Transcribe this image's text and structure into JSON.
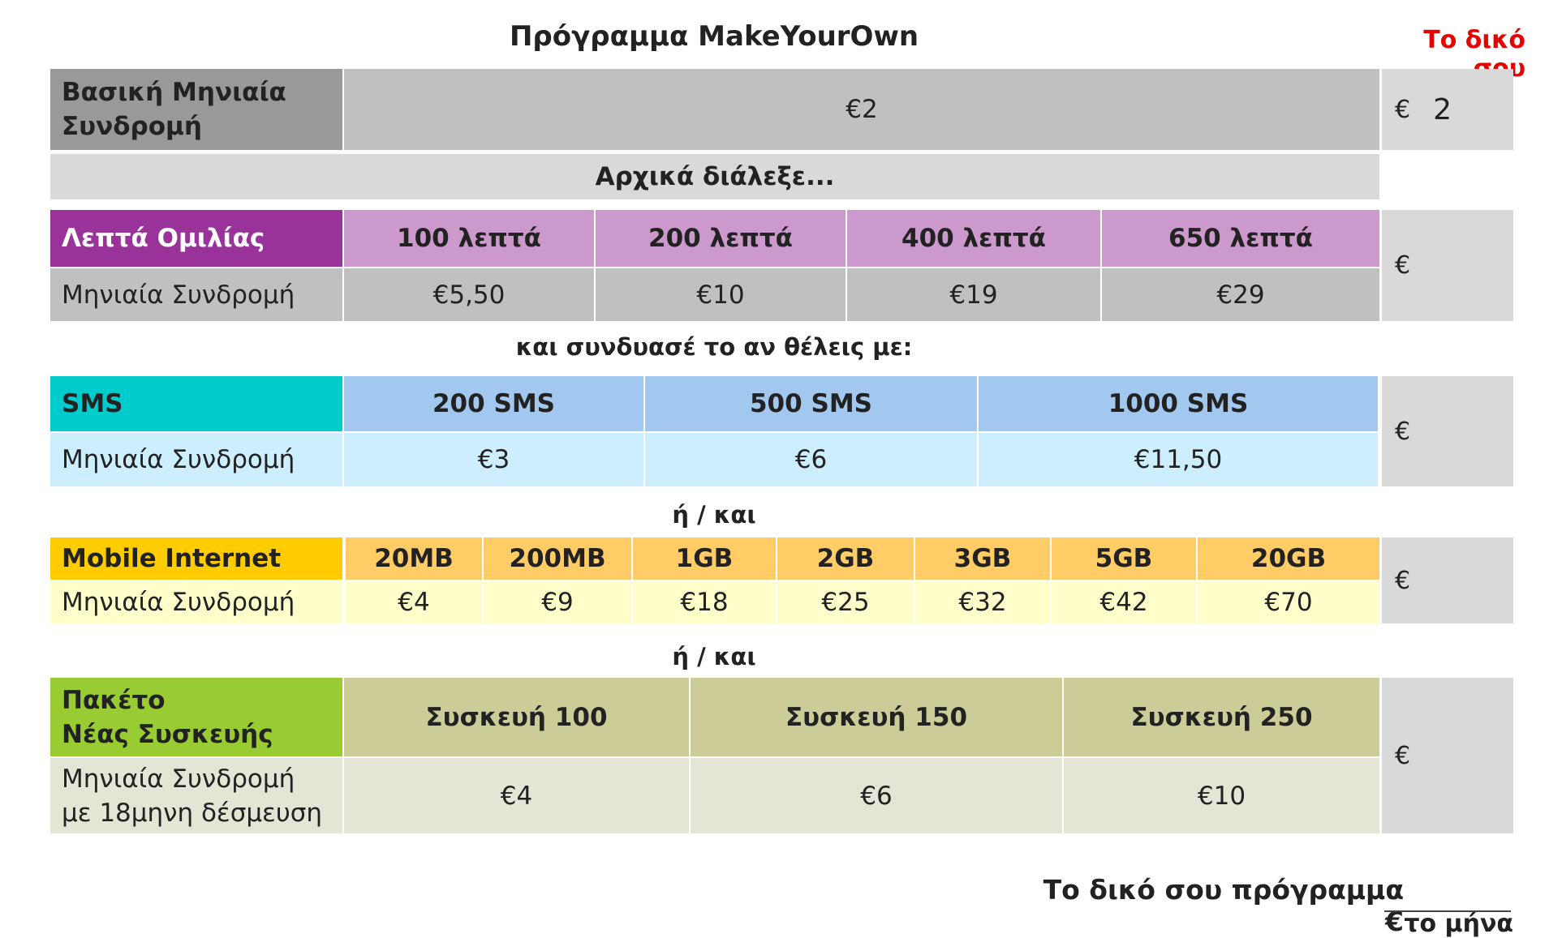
{
  "title": "Πρόγραμμα MakeYourOwn",
  "corner_label": "Το δικό σου",
  "base": {
    "label_line1": "Βασική Μηνιαία",
    "label_line2": "Συνδρομή",
    "price": "€2",
    "own_currency": "€",
    "own_value": "2"
  },
  "intro": "Αρχικά διάλεξε...",
  "connector1": "και συνδυασέ το αν θέλεις με:",
  "connector_and_or": "ή / και",
  "monthly_label": "Μηνιαία Συνδρομή",
  "currency": "€",
  "voice": {
    "label": "Λεπτά Ομιλίας",
    "options": [
      "100 λεπτά",
      "200 λεπτά",
      "400 λεπτά",
      "650 λεπτά"
    ],
    "prices": [
      "€5,50",
      "€10",
      "€19",
      "€29"
    ]
  },
  "sms": {
    "label": "SMS",
    "options": [
      "200 SMS",
      "500 SMS",
      "1000 SMS"
    ],
    "prices": [
      "€3",
      "€6",
      "€11,50"
    ]
  },
  "internet": {
    "label": "Mobile Internet",
    "options": [
      "20MB",
      "200MB",
      "1GB",
      "2GB",
      "3GB",
      "5GB",
      "20GB"
    ],
    "prices": [
      "€4",
      "€9",
      "€18",
      "€25",
      "€32",
      "€42",
      "€70"
    ]
  },
  "device": {
    "label_line1": "Πακέτο",
    "label_line2": "Νέας Συσκευής",
    "price_label_line1": "Μηνιαία Συνδρομή",
    "price_label_line2": "με 18μηνη δέσμευση",
    "options": [
      "Συσκευή 100",
      "Συσκευή 150",
      "Συσκευή 250"
    ],
    "prices": [
      "€4",
      "€6",
      "€10"
    ]
  },
  "total": {
    "label": "Το δικό σου πρόγραμμα €",
    "per_month": "το μήνα"
  },
  "colors": {
    "voice_header": "#993399",
    "voice_option": "#cc99cc",
    "sms_header": "#00cccc",
    "sms_option": "#a3c8f0",
    "sms_price": "#cceeff",
    "internet_header": "#ffcc00",
    "internet_option": "#ffcc66",
    "internet_price": "#ffffcc",
    "device_header": "#99cc33",
    "device_option": "#cccc99",
    "device_price": "#e5e5d5",
    "gray": "#c0c0c0",
    "light_gray": "#d9d9d9",
    "dark_gray": "#999999",
    "accent_red": "#e60000"
  }
}
